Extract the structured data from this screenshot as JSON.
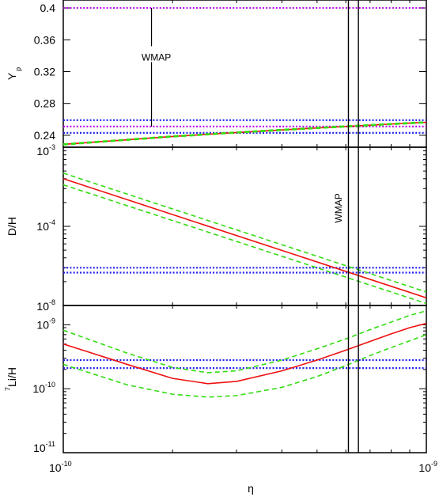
{
  "figure": {
    "xlabel": "η",
    "x_tick_labels": [
      {
        "value": 1e-10,
        "base": "10",
        "exp": "-10"
      },
      {
        "value": 1e-09,
        "base": "10",
        "exp": "-9"
      }
    ],
    "wmap_band": [
      6.1e-10,
      6.5e-10
    ],
    "colors": {
      "prediction": "#ee1111",
      "uncertainty": "#33dd11",
      "observation": "#2222ee",
      "upper_bound": "#bb11ee",
      "frame": "#000000"
    }
  },
  "chart_data": [
    {
      "type": "line",
      "id": "yp",
      "ylabel": {
        "main": "Y",
        "sub": "p"
      },
      "xlim": [
        1e-10,
        1e-09
      ],
      "x_scale": "log",
      "ylim": [
        0.225,
        0.41
      ],
      "y_scale": "linear",
      "y_ticks": [
        0.24,
        0.28,
        0.32,
        0.36,
        0.4
      ],
      "y_tick_labels": [
        "0.24",
        "0.28",
        "0.32",
        "0.36",
        "0.4"
      ],
      "series": [
        {
          "role": "central",
          "style": "solid",
          "color": "#ee1111",
          "x": [
            1e-10,
            2e-10,
            3e-10,
            4e-10,
            5e-10,
            6e-10,
            7e-10,
            8e-10,
            9e-10,
            1e-09
          ],
          "y": [
            0.2285,
            0.2385,
            0.2435,
            0.2467,
            0.2492,
            0.2511,
            0.2527,
            0.2541,
            0.2553,
            0.2563
          ]
        },
        {
          "role": "upper-1sigma",
          "style": "dashed",
          "color": "#33dd11",
          "x": [
            1e-10,
            2e-10,
            3e-10,
            4e-10,
            5e-10,
            6e-10,
            7e-10,
            8e-10,
            9e-10,
            1e-09
          ],
          "y": [
            0.2291,
            0.2391,
            0.2441,
            0.2473,
            0.2498,
            0.2517,
            0.2533,
            0.2547,
            0.2559,
            0.2569
          ]
        },
        {
          "role": "lower-1sigma",
          "style": "dashed",
          "color": "#33dd11",
          "x": [
            1e-10,
            2e-10,
            3e-10,
            4e-10,
            5e-10,
            6e-10,
            7e-10,
            8e-10,
            9e-10,
            1e-09
          ],
          "y": [
            0.2279,
            0.2379,
            0.2429,
            0.2461,
            0.2486,
            0.2505,
            0.2521,
            0.2535,
            0.2547,
            0.2557
          ]
        }
      ],
      "hlines": [
        {
          "y": 0.4,
          "style": "dotted",
          "color": "#bb11ee"
        },
        {
          "y": 0.259,
          "style": "dotted",
          "color": "#2222ee"
        },
        {
          "y": 0.243,
          "style": "dotted",
          "color": "#2222ee"
        },
        {
          "y": 0.251,
          "style": "dotted",
          "color": "#bb11ee"
        }
      ],
      "annotation": {
        "text": "WMAP",
        "x": 1.75e-10,
        "y": 0.338,
        "line_from": 0.4,
        "line_to": 0.251
      }
    },
    {
      "type": "line",
      "id": "dh",
      "ylabel": {
        "main": "D/H"
      },
      "xlim": [
        1e-10,
        1e-09
      ],
      "x_scale": "log",
      "ylim": [
        1e-05,
        0.001
      ],
      "y_scale": "log",
      "y_ticks": [
        0.0001,
        0.001
      ],
      "y_tick_labels": [
        {
          "value": 0.0001,
          "base": "10",
          "exp": "-4"
        },
        {
          "value": 0.001,
          "base": "10",
          "exp": "-3"
        }
      ],
      "bottom_label": {
        "base": "10",
        "exp": "-8"
      },
      "series": [
        {
          "role": "central",
          "style": "solid",
          "color": "#ee1111",
          "x": [
            1e-10,
            1e-09
          ],
          "y": [
            0.0004,
            1.25e-05
          ]
        },
        {
          "role": "upper-1sigma",
          "style": "dashed",
          "color": "#33dd11",
          "x": [
            1e-10,
            1e-09
          ],
          "y": [
            0.00047,
            1.48e-05
          ]
        },
        {
          "role": "lower-1sigma",
          "style": "dashed",
          "color": "#33dd11",
          "x": [
            1e-10,
            1e-09
          ],
          "y": [
            0.000335,
            1.06e-05
          ]
        }
      ],
      "hlines": [
        {
          "y": 3e-05,
          "style": "dotted",
          "color": "#2222ee"
        },
        {
          "y": 2.6e-05,
          "style": "dotted",
          "color": "#2222ee"
        }
      ],
      "annotation": {
        "text": "WMAP",
        "x": 5.85e-10,
        "y": 0.00017,
        "rotate": -90
      }
    },
    {
      "type": "line",
      "id": "li",
      "ylabel": {
        "pre": "7",
        "main": "Li/H"
      },
      "xlim": [
        1e-10,
        1e-09
      ],
      "x_scale": "log",
      "ylim": [
        1e-11,
        2e-09
      ],
      "y_scale": "log",
      "y_ticks": [
        1e-11,
        1e-10,
        1e-09
      ],
      "y_tick_labels": [
        {
          "value": 1e-11,
          "base": "10",
          "exp": "-11"
        },
        {
          "value": 1e-10,
          "base": "10",
          "exp": "-10"
        },
        {
          "value": 1e-09,
          "base": "10",
          "exp": "-9"
        }
      ],
      "series": [
        {
          "role": "central",
          "style": "solid",
          "color": "#ee1111",
          "x": [
            1e-10,
            1.5e-10,
            2e-10,
            2.5e-10,
            3e-10,
            4e-10,
            5e-10,
            6e-10,
            7e-10,
            8e-10,
            9e-10,
            1e-09
          ],
          "y": [
            5e-10,
            2.4e-10,
            1.45e-10,
            1.2e-10,
            1.3e-10,
            1.9e-10,
            2.8e-10,
            4e-10,
            5.5e-10,
            7.2e-10,
            9e-10,
            1.05e-09
          ]
        },
        {
          "role": "upper-1sigma",
          "style": "dashed",
          "color": "#33dd11",
          "x": [
            1e-10,
            1.5e-10,
            2e-10,
            2.5e-10,
            3e-10,
            4e-10,
            5e-10,
            6e-10,
            7e-10,
            8e-10,
            9e-10,
            1e-09
          ],
          "y": [
            8.2e-10,
            3.6e-10,
            2.15e-10,
            1.78e-10,
            1.9e-10,
            2.8e-10,
            4.2e-10,
            6e-10,
            8.4e-10,
            1.1e-09,
            1.4e-09,
            1.65e-09
          ]
        },
        {
          "role": "lower-1sigma",
          "style": "dashed",
          "color": "#33dd11",
          "x": [
            1e-10,
            1.5e-10,
            2e-10,
            2.5e-10,
            3e-10,
            4e-10,
            5e-10,
            6e-10,
            7e-10,
            8e-10,
            9e-10,
            1e-09
          ],
          "y": [
            2.4e-10,
            1.15e-10,
            8.2e-11,
            7.4e-11,
            7.8e-11,
            1.05e-10,
            1.55e-10,
            2.3e-10,
            3.3e-10,
            4.4e-10,
            5.6e-10,
            7e-10
          ]
        }
      ],
      "hlines": [
        {
          "y": 2.8e-10,
          "style": "dotted",
          "color": "#2222ee"
        },
        {
          "y": 2.1e-10,
          "style": "dotted",
          "color": "#2222ee"
        }
      ]
    }
  ]
}
